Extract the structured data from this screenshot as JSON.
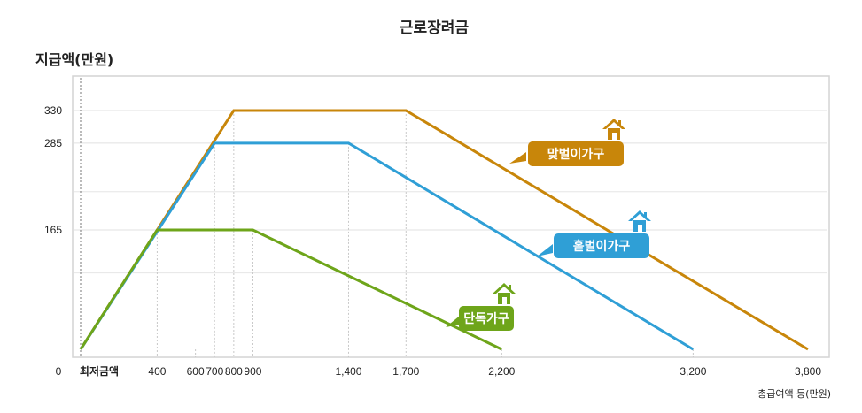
{
  "chart_data": {
    "type": "line",
    "title": "근로장려금",
    "ylabel": "지급액(만원)",
    "xlabel": "총급여액 등(만원)",
    "x_origin_label": "최저금액",
    "y_origin_label": "0",
    "xlim": [
      0,
      3800
    ],
    "ylim": [
      0,
      360
    ],
    "x_ticks": [
      {
        "value": 400,
        "label": "400"
      },
      {
        "value": 600,
        "label": "600"
      },
      {
        "value": 700,
        "label": "700"
      },
      {
        "value": 800,
        "label": "800"
      },
      {
        "value": 900,
        "label": "900"
      },
      {
        "value": 1400,
        "label": "1,400"
      },
      {
        "value": 1700,
        "label": "1,700"
      },
      {
        "value": 2200,
        "label": "2,200"
      },
      {
        "value": 3200,
        "label": "3,200"
      },
      {
        "value": 3800,
        "label": "3,800"
      }
    ],
    "y_ticks": [
      {
        "value": 165,
        "label": "165"
      },
      {
        "value": 285,
        "label": "285"
      },
      {
        "value": 330,
        "label": "330"
      }
    ],
    "grid": true,
    "series": [
      {
        "name": "맞벌이가구",
        "color": "#c8860a",
        "icon": "house-icon",
        "x": [
          0,
          800,
          1700,
          3800
        ],
        "y": [
          0,
          330,
          330,
          0
        ]
      },
      {
        "name": "홑벌이가구",
        "color": "#2f9fd6",
        "icon": "house-icon",
        "x": [
          0,
          700,
          1400,
          3200
        ],
        "y": [
          0,
          285,
          285,
          0
        ]
      },
      {
        "name": "단독가구",
        "color": "#6ea51a",
        "icon": "house-icon",
        "x": [
          0,
          400,
          900,
          2200
        ],
        "y": [
          0,
          165,
          165,
          0
        ]
      }
    ]
  }
}
